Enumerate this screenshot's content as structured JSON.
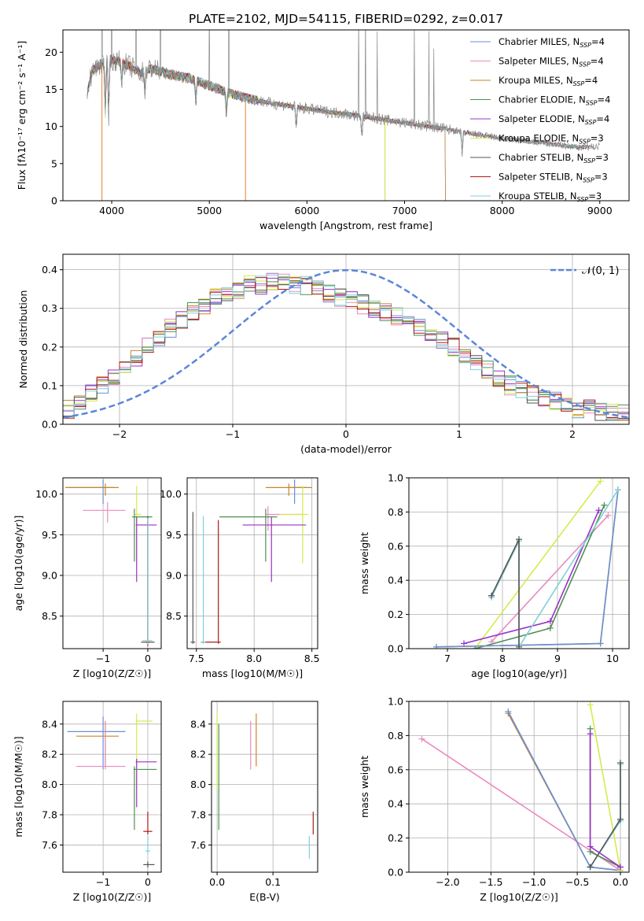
{
  "title": "PLATE=2102, MJD=54115, FIBERID=0292, z=0.017",
  "colors": {
    "Chabrier MILES": "#6a8fd8",
    "Salpeter MILES": "#e98bbf",
    "Kroupa MILES": "#c8862a",
    "Chabrier ELODIE": "#4f8f53",
    "Salpeter ELODIE": "#9b30c8",
    "Kroupa ELODIE": "#d6ea4c",
    "Chabrier STELIB": "#555555",
    "Salpeter STELIB": "#b01818",
    "Kroupa STELIB": "#80d0d8",
    "gaussian": "#5b86d8",
    "orange_fit": "#e6802a"
  },
  "chart_data": [
    {
      "id": "spectrum",
      "type": "line",
      "xlabel": "wavelength [Angstrom, rest frame]",
      "ylabel": "Flux [fλ10⁻¹⁷ erg cm⁻² s⁻¹ A⁻¹]",
      "xlim": [
        3500,
        9300
      ],
      "ylim": [
        0,
        23
      ],
      "xticks": [
        4000,
        5000,
        6000,
        7000,
        8000,
        9000
      ],
      "yticks": [
        0,
        5,
        10,
        15,
        20
      ],
      "grid": false,
      "legend_position": "top-right",
      "legend": [
        {
          "base": "Chabrier MILES, N",
          "sub": "SSP",
          "tail": "=4"
        },
        {
          "base": "Salpeter MILES, N",
          "sub": "SSP",
          "tail": "=4"
        },
        {
          "base": "Kroupa MILES, N",
          "sub": "SSP",
          "tail": "=4"
        },
        {
          "base": "Chabrier ELODIE, N",
          "sub": "SSP",
          "tail": "=4"
        },
        {
          "base": "Salpeter ELODIE, N",
          "sub": "SSP",
          "tail": "=4"
        },
        {
          "base": "Kroupa ELODIE, N",
          "sub": "SSP",
          "tail": "=3"
        },
        {
          "base": "Chabrier STELIB, N",
          "sub": "SSP",
          "tail": "=3"
        },
        {
          "base": "Salpeter STELIB, N",
          "sub": "SSP",
          "tail": "=3"
        },
        {
          "base": "Kroupa STELIB, N",
          "sub": "SSP",
          "tail": "=3"
        }
      ],
      "continuum": {
        "x": [
          3750,
          3800,
          3900,
          4000,
          4100,
          4200,
          4300,
          4400,
          4500,
          4600,
          4800,
          5000,
          5200,
          5400,
          5600,
          5800,
          6000,
          6200,
          6400,
          6600,
          6800,
          7000,
          7200,
          7400,
          7600,
          7800,
          8000,
          8200,
          8400,
          8600,
          8800,
          9000
        ],
        "y": [
          14.5,
          17.5,
          18.5,
          19.0,
          18.7,
          18.0,
          17.2,
          17.8,
          17.4,
          17.0,
          16.5,
          15.5,
          14.5,
          13.8,
          13.2,
          12.8,
          12.4,
          12.0,
          11.7,
          11.3,
          10.9,
          10.5,
          10.1,
          9.7,
          9.2,
          8.8,
          8.4,
          8.1,
          7.8,
          7.5,
          7.2,
          7.3
        ]
      },
      "absorption_lines": [
        3934,
        3969,
        4102,
        4340,
        4861,
        5175,
        5890,
        6563,
        7590
      ],
      "data_spikes": [
        3900,
        4000,
        4250,
        4500,
        5000,
        5200,
        6530,
        6600,
        6720,
        7100,
        7250,
        7300
      ]
    },
    {
      "id": "residuals",
      "type": "line",
      "xlabel": "(data-model)/error",
      "ylabel": "Normed distribution",
      "xlim": [
        -2.5,
        2.5
      ],
      "ylim": [
        0,
        0.44
      ],
      "xticks": [
        -2,
        -1,
        0,
        1,
        2
      ],
      "yticks": [
        0.0,
        0.1,
        0.2,
        0.3,
        0.4
      ],
      "grid": true,
      "legend_position": "top-right",
      "legend_label": "𝒩(0, 1)",
      "hist_bin_width": 0.1,
      "hist_profile": [
        0.04,
        0.06,
        0.08,
        0.1,
        0.12,
        0.15,
        0.17,
        0.2,
        0.22,
        0.25,
        0.27,
        0.29,
        0.31,
        0.33,
        0.34,
        0.35,
        0.36,
        0.36,
        0.37,
        0.37,
        0.36,
        0.36,
        0.35,
        0.34,
        0.33,
        0.32,
        0.31,
        0.3,
        0.29,
        0.28,
        0.27,
        0.25,
        0.24,
        0.22,
        0.2,
        0.18,
        0.16,
        0.14,
        0.12,
        0.1,
        0.09,
        0.08,
        0.07,
        0.06,
        0.05,
        0.04,
        0.04,
        0.03,
        0.03,
        0.03
      ]
    },
    {
      "id": "age-vs-Z",
      "type": "scatter",
      "xlabel": "Z [log10(Z/Z☉)]",
      "ylabel": "age  [log10(age/yr)]",
      "xlim": [
        -1.9,
        0.3
      ],
      "ylim": [
        8.1,
        10.2
      ],
      "xticks": [
        -1,
        0
      ],
      "yticks": [
        8.5,
        9.0,
        9.5,
        10.0
      ],
      "grid": true,
      "points": [
        {
          "model": "Chabrier MILES",
          "x": -1.0,
          "xerr": [
            0.8,
            0.25
          ],
          "y": 10.08,
          "yerr": [
            0.2,
            0.1
          ]
        },
        {
          "model": "Kroupa MILES",
          "x": -0.95,
          "xerr": [
            0.9,
            0.3
          ],
          "y": 10.08,
          "yerr": [
            0.1,
            0.05
          ]
        },
        {
          "model": "Salpeter MILES",
          "x": -0.9,
          "xerr": [
            0.55,
            0.4
          ],
          "y": 9.8,
          "yerr": [
            0.15,
            0.1
          ]
        },
        {
          "model": "Kroupa ELODIE",
          "x": -0.25,
          "xerr": [
            0.05,
            0.1
          ],
          "y": 9.75,
          "yerr": [
            0.6,
            0.35
          ]
        },
        {
          "model": "Salpeter ELODIE",
          "x": -0.25,
          "xerr": [
            0.02,
            0.45
          ],
          "y": 9.62,
          "yerr": [
            0.7,
            0.1
          ]
        },
        {
          "model": "Chabrier ELODIE",
          "x": -0.3,
          "xerr": [
            0.05,
            0.4
          ],
          "y": 9.72,
          "yerr": [
            0.55,
            0.1
          ]
        },
        {
          "model": "Chabrier STELIB",
          "x": 0.0,
          "xerr": [
            0.15,
            0.15
          ],
          "y": 8.18,
          "yerr": [
            0.02,
            1.55
          ]
        },
        {
          "model": "Salpeter STELIB",
          "x": 0.0,
          "xerr": [
            0.05,
            0.05
          ],
          "y": 8.18,
          "yerr": [
            0.05,
            1.5
          ]
        },
        {
          "model": "Kroupa STELIB",
          "x": 0.0,
          "xerr": [
            0.12,
            0.1
          ],
          "y": 8.2,
          "yerr": [
            0.05,
            1.5
          ]
        }
      ]
    },
    {
      "id": "age-vs-mass",
      "type": "scatter",
      "xlabel": "mass [log10(M/M☉)]",
      "ylabel": "",
      "xlim": [
        7.42,
        8.55
      ],
      "ylim": [
        8.1,
        10.2
      ],
      "xticks": [
        7.5,
        8.0,
        8.5
      ],
      "yticks": [
        8.5,
        9.0,
        9.5,
        10.0
      ],
      "grid": true,
      "points": [
        {
          "model": "Chabrier MILES",
          "x": 8.35,
          "xerr": [
            0.05,
            0.1
          ],
          "y": 10.08,
          "yerr": [
            0.2,
            0.1
          ]
        },
        {
          "model": "Kroupa MILES",
          "x": 8.3,
          "xerr": [
            0.2,
            0.2
          ],
          "y": 10.08,
          "yerr": [
            0.1,
            0.05
          ]
        },
        {
          "model": "Salpeter MILES",
          "x": 8.12,
          "xerr": [
            0.02,
            0.3
          ],
          "y": 9.75,
          "yerr": [
            0.2,
            0.1
          ]
        },
        {
          "model": "Kroupa ELODIE",
          "x": 8.42,
          "xerr": [
            0.2,
            0.05
          ],
          "y": 9.75,
          "yerr": [
            0.6,
            0.35
          ]
        },
        {
          "model": "Salpeter ELODIE",
          "x": 8.15,
          "xerr": [
            0.25,
            0.3
          ],
          "y": 9.62,
          "yerr": [
            0.7,
            0.1
          ]
        },
        {
          "model": "Chabrier ELODIE",
          "x": 8.1,
          "xerr": [
            0.4,
            0.1
          ],
          "y": 9.72,
          "yerr": [
            0.55,
            0.1
          ]
        },
        {
          "model": "Chabrier STELIB",
          "x": 7.47,
          "xerr": [
            0.02,
            0.02
          ],
          "y": 8.18,
          "yerr": [
            0.02,
            1.6
          ]
        },
        {
          "model": "Salpeter STELIB",
          "x": 7.69,
          "xerr": [
            0.15,
            0.02
          ],
          "y": 8.18,
          "yerr": [
            0.02,
            1.5
          ]
        },
        {
          "model": "Kroupa STELIB",
          "x": 7.56,
          "xerr": [
            0.02,
            0.02
          ],
          "y": 8.18,
          "yerr": [
            0.02,
            1.55
          ]
        }
      ]
    },
    {
      "id": "weight-vs-age",
      "type": "line",
      "xlabel": "age  [log10(age/yr)]",
      "ylabel": "mass weight",
      "xlim": [
        6.3,
        10.3
      ],
      "ylim": [
        0,
        1.0
      ],
      "xticks": [
        7,
        8,
        9,
        10
      ],
      "yticks": [
        0.0,
        0.2,
        0.4,
        0.6,
        0.8,
        1.0
      ],
      "grid": true,
      "series": [
        {
          "model": "Kroupa ELODIE",
          "points": [
            [
              7.5,
              0.0
            ],
            [
              9.78,
              0.98
            ]
          ]
        },
        {
          "model": "Salpeter MILES",
          "points": [
            [
              7.8,
              0.04
            ],
            [
              9.92,
              0.78
            ]
          ]
        },
        {
          "model": "Chabrier ELODIE",
          "points": [
            [
              7.5,
              0.0
            ],
            [
              8.87,
              0.12
            ],
            [
              9.85,
              0.84
            ]
          ]
        },
        {
          "model": "Salpeter ELODIE",
          "points": [
            [
              7.3,
              0.03
            ],
            [
              8.87,
              0.16
            ],
            [
              9.75,
              0.81
            ]
          ]
        },
        {
          "model": "Kroupa MILES",
          "points": [
            [
              6.8,
              0.01
            ],
            [
              9.78,
              0.03
            ],
            [
              10.1,
              0.93
            ]
          ]
        },
        {
          "model": "Chabrier MILES",
          "points": [
            [
              6.8,
              0.01
            ],
            [
              9.78,
              0.03
            ],
            [
              10.1,
              0.93
            ]
          ]
        },
        {
          "model": "Kroupa STELIB",
          "points": [
            [
              7.8,
              0.3
            ],
            [
              8.3,
              0.63
            ],
            [
              8.3,
              0.01
            ],
            [
              10.1,
              0.93
            ]
          ]
        },
        {
          "model": "Chabrier STELIB",
          "points": [
            [
              7.8,
              0.31
            ],
            [
              8.3,
              0.64
            ],
            [
              8.3,
              0.01
            ]
          ]
        }
      ]
    },
    {
      "id": "mass-vs-Z",
      "type": "scatter",
      "xlabel": "Z [log10(Z/Z☉)]",
      "ylabel": "mass [log10(M/M☉)]",
      "xlim": [
        -1.9,
        0.3
      ],
      "ylim": [
        7.42,
        8.55
      ],
      "xticks": [
        -1,
        0
      ],
      "yticks": [
        7.6,
        7.8,
        8.0,
        8.2,
        8.4
      ],
      "grid": true,
      "points": [
        {
          "model": "Chabrier MILES",
          "x": -1.0,
          "xerr": [
            0.8,
            0.5
          ],
          "y": 8.35,
          "yerr": [
            0.25,
            0.1
          ]
        },
        {
          "model": "Kroupa MILES",
          "x": -0.95,
          "xerr": [
            0.65,
            0.3
          ],
          "y": 8.32,
          "yerr": [
            0.2,
            0.1
          ]
        },
        {
          "model": "Salpeter MILES",
          "x": -0.95,
          "xerr": [
            0.65,
            0.45
          ],
          "y": 8.12,
          "yerr": [
            0.02,
            0.3
          ]
        },
        {
          "model": "Kroupa ELODIE",
          "x": -0.25,
          "xerr": [
            0.02,
            0.35
          ],
          "y": 8.42,
          "yerr": [
            0.45,
            0.05
          ]
        },
        {
          "model": "Salpeter ELODIE",
          "x": -0.25,
          "xerr": [
            0.02,
            0.45
          ],
          "y": 8.15,
          "yerr": [
            0.3,
            0.02
          ]
        },
        {
          "model": "Chabrier ELODIE",
          "x": -0.3,
          "xerr": [
            0.02,
            0.5
          ],
          "y": 8.1,
          "yerr": [
            0.4,
            0.02
          ]
        },
        {
          "model": "Chabrier STELIB",
          "x": 0.0,
          "xerr": [
            0.1,
            0.15
          ],
          "y": 7.47,
          "yerr": [
            0.02,
            0.02
          ]
        },
        {
          "model": "Salpeter STELIB",
          "x": 0.0,
          "xerr": [
            0.1,
            0.1
          ],
          "y": 7.69,
          "yerr": [
            0.02,
            0.13
          ]
        },
        {
          "model": "Kroupa STELIB",
          "x": 0.0,
          "xerr": [
            0.05,
            0.05
          ],
          "y": 7.56,
          "yerr": [
            0.02,
            0.1
          ]
        }
      ]
    },
    {
      "id": "mass-vs-EBV",
      "type": "scatter",
      "xlabel": "E(B-V)",
      "ylabel": "",
      "xlim": [
        -0.01,
        0.18
      ],
      "ylim": [
        7.42,
        8.55
      ],
      "xticks": [
        0.0,
        0.1
      ],
      "yticks": [
        7.6,
        7.8,
        8.0,
        8.2,
        8.4
      ],
      "grid": true,
      "points": [
        {
          "model": "Kroupa ELODIE",
          "x": 0.0,
          "y": 8.42,
          "yerr": [
            0.45,
            0.05
          ]
        },
        {
          "model": "Chabrier ELODIE",
          "x": 0.003,
          "y": 8.1,
          "yerr": [
            0.4,
            0.3
          ]
        },
        {
          "model": "Salpeter MILES",
          "x": 0.06,
          "y": 8.12,
          "yerr": [
            0.02,
            0.3
          ]
        },
        {
          "model": "Kroupa MILES",
          "x": 0.07,
          "y": 8.32,
          "yerr": [
            0.2,
            0.15
          ]
        },
        {
          "model": "Kroupa STELIB",
          "x": 0.165,
          "y": 7.56,
          "yerr": [
            0.05,
            0.1
          ]
        },
        {
          "model": "Salpeter STELIB",
          "x": 0.172,
          "y": 7.69,
          "yerr": [
            0.02,
            0.13
          ]
        }
      ]
    },
    {
      "id": "weight-vs-Z",
      "type": "line",
      "xlabel": "Z [log10(Z/Z☉)]",
      "ylabel": "mass weight",
      "xlim": [
        -2.45,
        0.1
      ],
      "ylim": [
        0,
        1.0
      ],
      "xticks": [
        -2.0,
        -1.5,
        -1.0,
        -0.5,
        0.0
      ],
      "yticks": [
        0.0,
        0.2,
        0.4,
        0.6,
        0.8,
        1.0
      ],
      "grid": true,
      "series": [
        {
          "model": "Salpeter MILES",
          "points": [
            [
              -2.3,
              0.78
            ],
            [
              0.0,
              0.01
            ]
          ]
        },
        {
          "model": "Kroupa MILES",
          "points": [
            [
              -1.3,
              0.93
            ],
            [
              -0.35,
              0.03
            ],
            [
              0.0,
              0.01
            ]
          ]
        },
        {
          "model": "Chabrier MILES",
          "points": [
            [
              -1.3,
              0.94
            ],
            [
              -0.35,
              0.03
            ],
            [
              0.0,
              0.01
            ]
          ]
        },
        {
          "model": "Kroupa ELODIE",
          "points": [
            [
              -0.35,
              0.98
            ],
            [
              0.0,
              0.01
            ]
          ]
        },
        {
          "model": "Chabrier ELODIE",
          "points": [
            [
              -0.35,
              0.84
            ],
            [
              -0.35,
              0.12
            ],
            [
              0.0,
              0.03
            ]
          ]
        },
        {
          "model": "Salpeter ELODIE",
          "points": [
            [
              -0.35,
              0.81
            ],
            [
              -0.35,
              0.15
            ],
            [
              0.0,
              0.03
            ]
          ]
        },
        {
          "model": "Kroupa STELIB",
          "points": [
            [
              -0.35,
              0.03
            ],
            [
              0.0,
              0.3
            ],
            [
              0.0,
              0.63
            ]
          ]
        },
        {
          "model": "Chabrier STELIB",
          "points": [
            [
              -0.35,
              0.03
            ],
            [
              0.0,
              0.31
            ],
            [
              0.0,
              0.64
            ]
          ]
        }
      ]
    }
  ]
}
